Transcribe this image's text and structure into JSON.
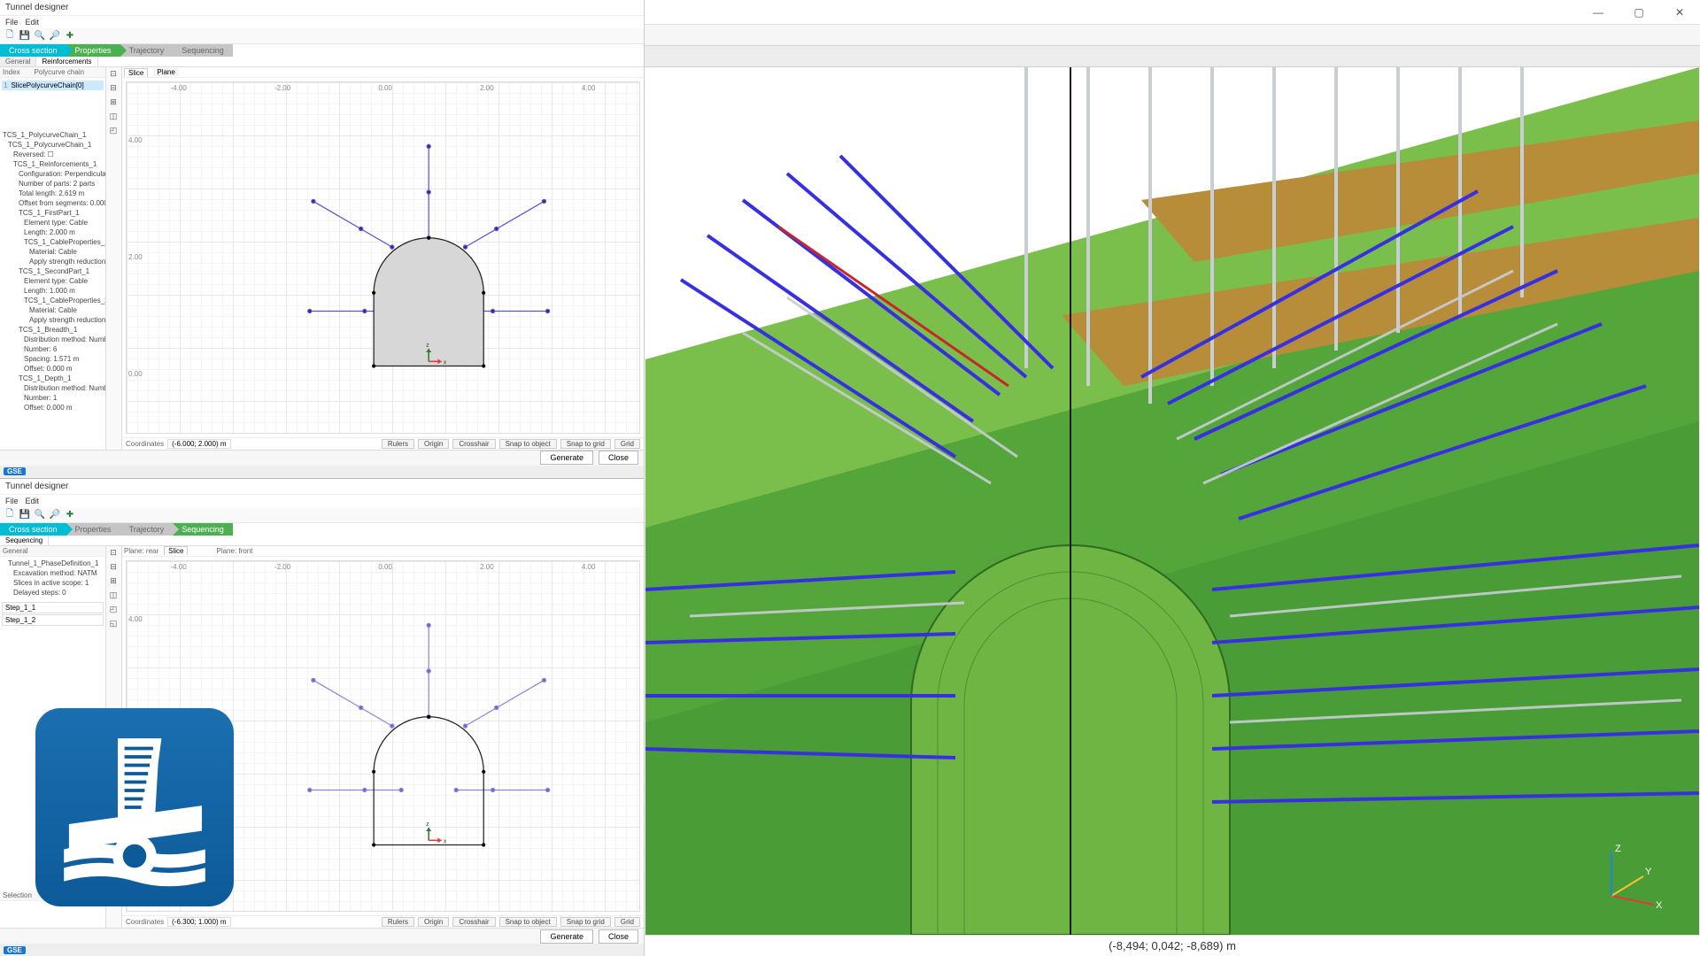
{
  "top_window": {
    "title": "Tunnel designer",
    "menus": [
      "File",
      "Edit"
    ],
    "icons": [
      "new",
      "save",
      "search",
      "zoom",
      "add"
    ],
    "wiz_tabs": [
      {
        "label": "Cross section",
        "style": "cyan"
      },
      {
        "label": "Properties",
        "style": "green"
      },
      {
        "label": "Trajectory",
        "style": "gray"
      },
      {
        "label": "Sequencing",
        "style": "gray"
      }
    ],
    "sub_tabs": [
      "General",
      "Reinforcements"
    ],
    "side": {
      "columns": [
        "Index",
        "Polycurve chain"
      ],
      "items": [
        "SlicePolycurveChain[0]"
      ],
      "tree_title": "TCS_1_PolycurveChain_1",
      "tree": [
        {
          "t": "TCS_1_PolycurveChain_1",
          "d": 1
        },
        {
          "t": "Reversed: ☐",
          "d": 2
        },
        {
          "t": "TCS_1_Reinforcements_1",
          "d": 2
        },
        {
          "t": "Configuration: Perpendicular",
          "d": 3
        },
        {
          "t": "Number of parts: 2 parts",
          "d": 3
        },
        {
          "t": "Total length: 2.619 m",
          "d": 3
        },
        {
          "t": "Offset from segments: 0.000 m",
          "d": 3
        },
        {
          "t": "TCS_1_FirstPart_1",
          "d": 3
        },
        {
          "t": "Element type: Cable",
          "d": 4
        },
        {
          "t": "Length: 2.000 m",
          "d": 4
        },
        {
          "t": "TCS_1_CableProperties_1",
          "d": 4
        },
        {
          "t": "Material: Cable",
          "d": 5
        },
        {
          "t": "Apply strength reduction: ☐",
          "d": 5
        },
        {
          "t": "TCS_1_SecondPart_1",
          "d": 3
        },
        {
          "t": "Element type: Cable",
          "d": 4
        },
        {
          "t": "Length: 1.000 m",
          "d": 4
        },
        {
          "t": "TCS_1_CableProperties_2",
          "d": 4
        },
        {
          "t": "Material: Cable",
          "d": 5
        },
        {
          "t": "Apply strength reduction: ☐",
          "d": 5
        },
        {
          "t": "TCS_1_Breadth_1",
          "d": 3
        },
        {
          "t": "Distribution method: Number",
          "d": 4
        },
        {
          "t": "Number: 6",
          "d": 4
        },
        {
          "t": "Spacing: 1.571 m",
          "d": 4
        },
        {
          "t": "Offset: 0.000 m",
          "d": 4
        },
        {
          "t": "TCS_1_Depth_1",
          "d": 3
        },
        {
          "t": "Distribution method: Number",
          "d": 4
        },
        {
          "t": "Number: 1",
          "d": 4
        },
        {
          "t": "Offset: 0.000 m",
          "d": 4
        }
      ]
    },
    "canvas": {
      "tab_left": "Slice",
      "tab_right": "Plane",
      "x_ticks": [
        "-4.00",
        "-2.00",
        "0.00",
        "2.00",
        "4.00"
      ],
      "y_ticks": [
        "4.00",
        "2.00",
        "0.00"
      ],
      "coord_label": "Coordinates",
      "coord_value": "(-6.000; 2.000) m",
      "footer_btns": [
        "Rulers",
        "Origin",
        "Crosshair",
        "Snap to object",
        "Snap to grid",
        "Grid"
      ]
    },
    "footer_btns": [
      "Generate",
      "Close"
    ],
    "status_badge": "GSE"
  },
  "bottom_window": {
    "title": "Tunnel designer",
    "menus": [
      "File",
      "Edit"
    ],
    "wiz_tabs": [
      {
        "label": "Cross section",
        "style": "cyan"
      },
      {
        "label": "Properties",
        "style": "gray"
      },
      {
        "label": "Trajectory",
        "style": "gray"
      },
      {
        "label": "Sequencing",
        "style": "green"
      }
    ],
    "sub_tabs": [
      "Sequencing"
    ],
    "side": {
      "hdr": "General",
      "tree": [
        {
          "t": "Tunnel_1_PhaseDefinition_1",
          "d": 1
        },
        {
          "t": "Excavation method: NATM",
          "d": 2
        },
        {
          "t": "Slices in active scope: 1",
          "d": 2
        },
        {
          "t": "Delayed steps: 0",
          "d": 2
        }
      ],
      "steps": [
        "Step_1_1",
        "Step_1_2"
      ],
      "selection_label": "Selection"
    },
    "canvas": {
      "tab_left_label": "Plane: rear",
      "tab_left": "Slice",
      "tab_right_label": "Plane: front",
      "x_ticks": [
        "-4.00",
        "-2.00",
        "0.00",
        "2.00",
        "4.00"
      ],
      "y_ticks": [
        "4.00",
        "2.00",
        "0.00"
      ],
      "coord_label": "Coordinates",
      "coord_value": "(-6.300; 1.000) m",
      "footer_btns": [
        "Rulers",
        "Origin",
        "Crosshair",
        "Snap to object",
        "Snap to grid",
        "Grid"
      ]
    },
    "footer_btns": [
      "Generate",
      "Close"
    ],
    "status_badge": "GSE"
  },
  "vp3d": {
    "status": "(-8,494; 0,042; -8,689) m",
    "axes": [
      "X",
      "Y",
      "Z"
    ],
    "colors": {
      "bg_top": "#ffffff",
      "bg_bottom": "#f0f0f0",
      "terrain1": "#7abf4c",
      "terrain2": "#55a63a",
      "terrain3": "#3c8b2d",
      "sand": "#b78d3a",
      "bolt_blue": "#3730e0",
      "bolt_gray": "#c9cdd4",
      "tunnel": "#6eb544"
    }
  },
  "tunnel_shape": {
    "fill": "#d7d7d7",
    "stroke": "#222",
    "bolt_color": "#5a54d6",
    "dot_color": "#2e2a7a"
  }
}
